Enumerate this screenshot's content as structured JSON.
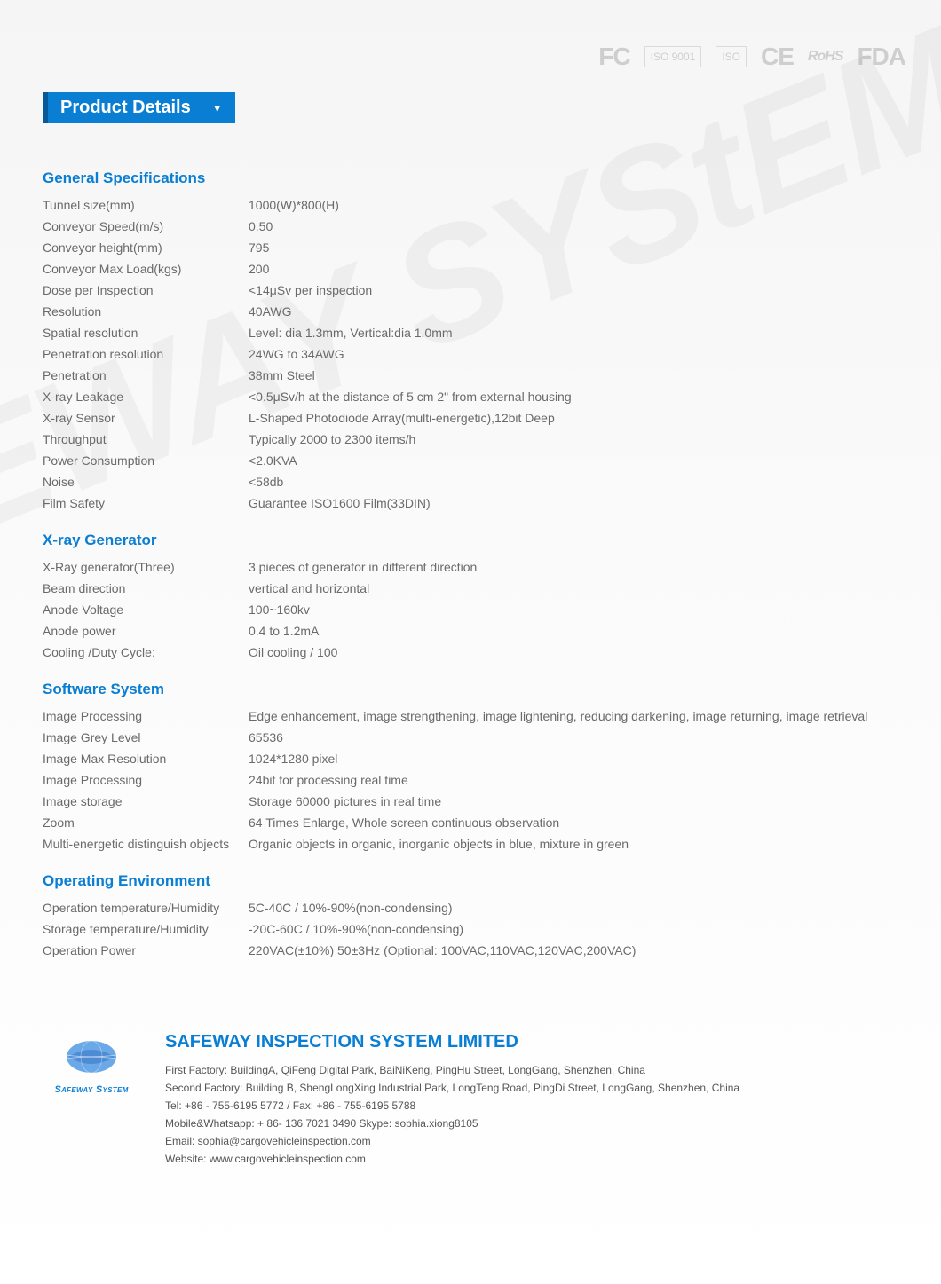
{
  "colors": {
    "accent": "#0a7ed3",
    "accent_dark": "#065a9a",
    "text_muted": "#6a6a6a",
    "bg_top": "#f5f5f5",
    "bg_bottom": "#ffffff",
    "watermark_color": "rgba(0,0,0,0.04)"
  },
  "watermark_text": "SAFEWAY SYStEM",
  "certifications": [
    "FC",
    "ISO 9001",
    "ISO",
    "CE",
    "RoHS",
    "FDA"
  ],
  "title": "Product Details",
  "sections": [
    {
      "heading": "General Specifications",
      "rows": [
        {
          "label": "Tunnel size(mm)",
          "value": "1000(W)*800(H)"
        },
        {
          "label": "Conveyor Speed(m/s)",
          "value": "0.50"
        },
        {
          "label": "Conveyor height(mm)",
          "value": "795"
        },
        {
          "label": "Conveyor Max Load(kgs)",
          "value": "200"
        },
        {
          "label": "Dose per Inspection",
          "value": "<14μSv per inspection"
        },
        {
          "label": "Resolution",
          "value": "40AWG"
        },
        {
          "label": "Spatial resolution",
          "value": "Level: dia 1.3mm, Vertical:dia 1.0mm"
        },
        {
          "label": "Penetration resolution",
          "value": "24WG to 34AWG"
        },
        {
          "label": "Penetration",
          "value": "38mm Steel"
        },
        {
          "label": "X-ray Leakage",
          "value": "<0.5μSv/h at the distance of 5 cm 2\" from external housing"
        },
        {
          "label": "X-ray Sensor",
          "value": "L-Shaped Photodiode Array(multi-energetic),12bit Deep"
        },
        {
          "label": "Throughput",
          "value": "Typically 2000 to 2300 items/h"
        },
        {
          "label": "Power Consumption",
          "value": "<2.0KVA"
        },
        {
          "label": "Noise",
          "value": "<58db"
        },
        {
          "label": "Film Safety",
          "value": "Guarantee ISO1600 Film(33DIN)"
        }
      ]
    },
    {
      "heading": "X-ray Generator",
      "rows": [
        {
          "label": "X-Ray generator(Three)",
          "value": "3 pieces of generator in different direction"
        },
        {
          "label": "Beam direction",
          "value": "vertical and horizontal"
        },
        {
          "label": "Anode Voltage",
          "value": "100~160kv"
        },
        {
          "label": "Anode power",
          "value": "0.4 to 1.2mA"
        },
        {
          "label": "Cooling /Duty Cycle:",
          "value": "Oil cooling / 100"
        }
      ]
    },
    {
      "heading": "Software System",
      "rows": [
        {
          "label": "Image Processing",
          "value": "Edge enhancement, image strengthening, image lightening, reducing darkening, image returning, image retrieval"
        },
        {
          "label": "Image Grey Level",
          "value": "65536"
        },
        {
          "label": "Image Max Resolution",
          "value": "1024*1280 pixel"
        },
        {
          "label": "Image Processing",
          "value": "24bit for processing real time"
        },
        {
          "label": "Image storage",
          "value": "Storage 60000 pictures in real time"
        },
        {
          "label": "Zoom",
          "value": "64 Times Enlarge, Whole screen continuous observation"
        },
        {
          "label": "Multi-energetic distinguish objects",
          "value": "Organic objects in organic, inorganic objects in blue, mixture in green"
        }
      ]
    },
    {
      "heading": "Operating Environment",
      "rows": [
        {
          "label": "Operation temperature/Humidity",
          "value": "5C-40C / 10%-90%(non-condensing)"
        },
        {
          "label": "Storage temperature/Humidity",
          "value": "-20C-60C / 10%-90%(non-condensing)"
        },
        {
          "label": "Operation Power",
          "value": "220VAC(±10%) 50±3Hz (Optional: 100VAC,110VAC,120VAC,200VAC)"
        }
      ]
    }
  ],
  "footer": {
    "company": "SAFEWAY INSPECTION SYSTEM LIMITED",
    "logo_text": "Safeway System",
    "lines": [
      "First Factory: BuildingA, QiFeng Digital Park, BaiNiKeng, PingHu Street, LongGang, Shenzhen, China",
      "Second Factory: Building B, ShengLongXing Industrial Park, LongTeng Road, PingDi Street, LongGang, Shenzhen, China",
      "Tel: +86 - 755-6195 5772  /  Fax: +86 - 755-6195 5788",
      "Mobile&Whatsapp: + 86- 136 7021 3490 Skype: sophia.xiong8105",
      "Email: sophia@cargovehicleinspection.com",
      "Website: www.cargovehicleinspection.com"
    ]
  }
}
